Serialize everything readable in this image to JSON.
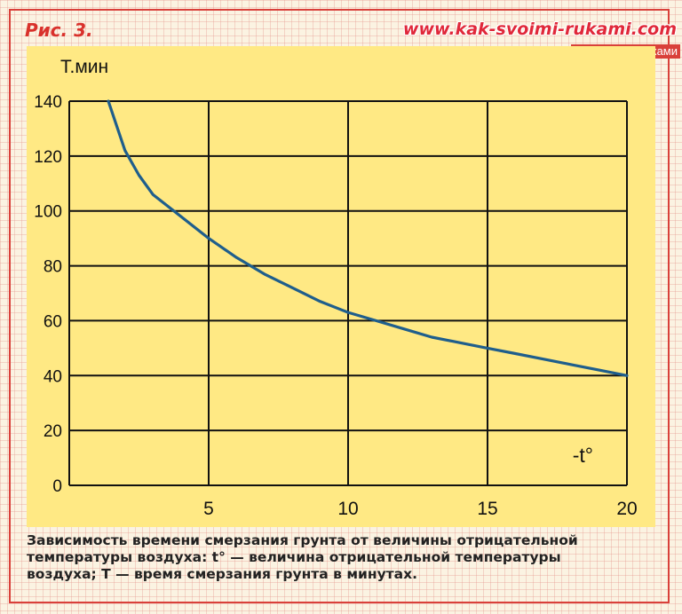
{
  "header": {
    "figure_label": "Рис. 3.",
    "watermark_url": "www.kak-svoimi-rukami.com",
    "watermark_sub": "Все своими руками"
  },
  "caption_lines": [
    "Зависимость времени смерзания грунта от величины отрицательной",
    "температуры воздуха: t° — величина отрицательной температуры",
    "воздуха; T — время смерзания грунта в минутах."
  ],
  "colors": {
    "panel": "#ffe984",
    "curve": "#1f5e8c",
    "grid": "#111111",
    "accent": "#d9403a"
  },
  "chart_data": {
    "type": "line",
    "ylabel": "Т.мин",
    "xlabel": "-t°",
    "xlim": [
      0,
      20
    ],
    "ylim": [
      0,
      140
    ],
    "x_ticks": [
      5,
      10,
      15,
      20
    ],
    "y_ticks": [
      0,
      20,
      40,
      60,
      80,
      100,
      120,
      140
    ],
    "grid": true,
    "series": [
      {
        "x": [
          1.4,
          2,
          2.5,
          3,
          4,
          5,
          6,
          7,
          8,
          9,
          10,
          11,
          12,
          13,
          14,
          15,
          16,
          17,
          18,
          19,
          20
        ],
        "y": [
          140,
          122,
          113,
          106,
          98,
          90,
          83,
          77,
          72,
          67,
          63,
          60,
          57,
          54,
          52,
          50,
          48,
          46,
          44,
          42,
          40
        ]
      }
    ]
  }
}
